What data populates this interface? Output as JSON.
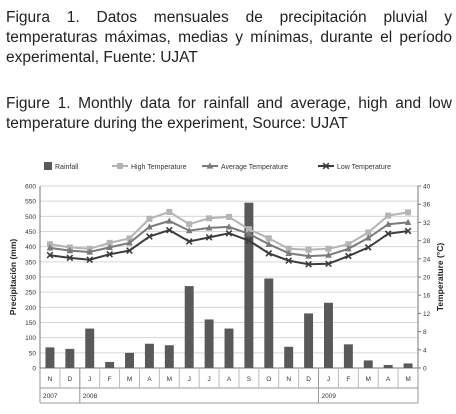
{
  "caption_es": "Figura 1.   Datos mensuales de precipitación pluvial y temperaturas máximas, medias y mínimas, durante el período experimental, Fuente: UJAT",
  "caption_en": "Figure 1. Monthly data for rainfall and average, high and low temperature during the experiment, Source: UJAT",
  "chart_data": {
    "type": "bar",
    "categories": [
      "N",
      "D",
      "J",
      "F",
      "M",
      "A",
      "M",
      "J",
      "J",
      "A",
      "S",
      "O",
      "N",
      "D",
      "J",
      "F",
      "M",
      "A",
      "M"
    ],
    "year_groups": [
      {
        "label": "2007",
        "start": 0,
        "end": 1
      },
      {
        "label": "2008",
        "start": 2,
        "end": 13
      },
      {
        "label": "2009",
        "start": 14,
        "end": 18
      }
    ],
    "ylabel": "Precipitación (mm)",
    "y2label": "Temperature (°C)",
    "ylim": [
      0,
      600
    ],
    "y2lim": [
      0,
      40
    ],
    "yticks": [
      0,
      50,
      100,
      150,
      200,
      250,
      300,
      350,
      400,
      450,
      500,
      550,
      600
    ],
    "y2ticks": [
      0,
      4,
      8,
      12,
      16,
      20,
      24,
      28,
      32,
      36,
      40
    ],
    "legend_position": "top",
    "series": [
      {
        "name": "Rainfall",
        "type": "bar",
        "axis": "left",
        "color": "#595959",
        "values": [
          68,
          63,
          130,
          20,
          50,
          80,
          75,
          270,
          160,
          130,
          545,
          295,
          70,
          180,
          215,
          78,
          25,
          10,
          15
        ]
      },
      {
        "name": "High Temperature",
        "type": "line",
        "axis": "right",
        "color": "#b4b4b4",
        "marker": "square",
        "values": [
          27.2,
          26.5,
          26.2,
          27.5,
          28.5,
          32.8,
          34.3,
          31.6,
          32.9,
          33.2,
          30.5,
          28.5,
          26.2,
          26.0,
          26.2,
          27.2,
          29.8,
          33.5,
          34.2
        ]
      },
      {
        "name": "Average Temperature",
        "type": "line",
        "axis": "right",
        "color": "#7a7a7a",
        "marker": "triangle",
        "values": [
          26.4,
          25.8,
          25.5,
          26.5,
          27.5,
          31.0,
          32.3,
          30.2,
          30.8,
          31.0,
          29.5,
          27.2,
          25.2,
          24.6,
          24.8,
          26.2,
          28.6,
          31.6,
          32.0
        ]
      },
      {
        "name": "Low Temperature",
        "type": "line",
        "axis": "right",
        "color": "#3c3c3c",
        "marker": "x",
        "values": [
          24.8,
          24.2,
          23.8,
          25.0,
          25.8,
          28.9,
          30.3,
          27.8,
          28.7,
          29.6,
          28.0,
          25.2,
          23.6,
          22.8,
          22.9,
          24.6,
          26.5,
          29.5,
          30.1
        ]
      }
    ]
  }
}
